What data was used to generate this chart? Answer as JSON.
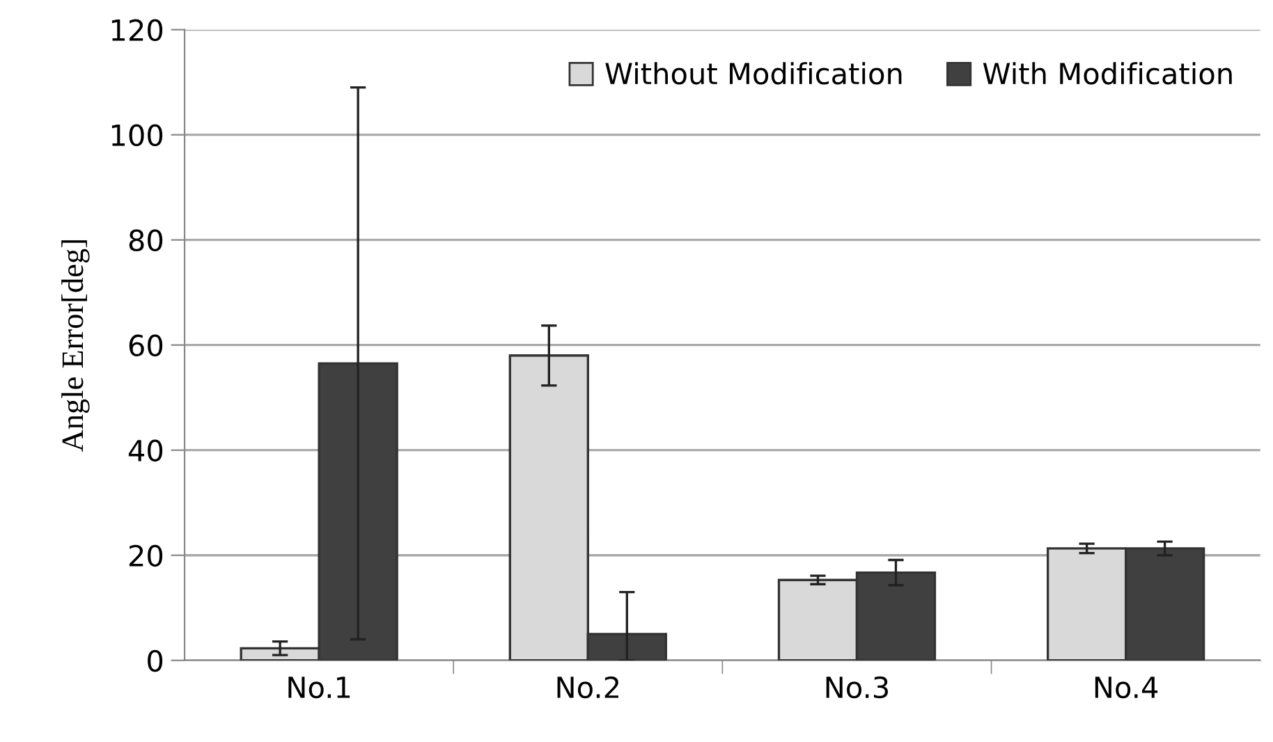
{
  "chart_data": {
    "type": "bar",
    "ylabel": "Angle Error[deg]",
    "categories": [
      "No.1",
      "No.2",
      "No.3",
      "No.4"
    ],
    "series": [
      {
        "name": "Without Modification",
        "color": "#d9d9d9",
        "values": [
          2.3,
          58,
          15.3,
          21.3
        ],
        "errors": [
          1.3,
          5.7,
          0.8,
          0.9
        ]
      },
      {
        "name": "With Modification",
        "color": "#404040",
        "values": [
          56.5,
          5,
          16.7,
          21.3
        ],
        "errors": [
          52.5,
          [
            0,
            13
          ],
          2.4,
          1.3
        ]
      }
    ],
    "ylim": [
      0,
      120
    ],
    "yticks": [
      0,
      20,
      40,
      60,
      80,
      100,
      120
    ],
    "grid": "y",
    "legend": "top right"
  }
}
